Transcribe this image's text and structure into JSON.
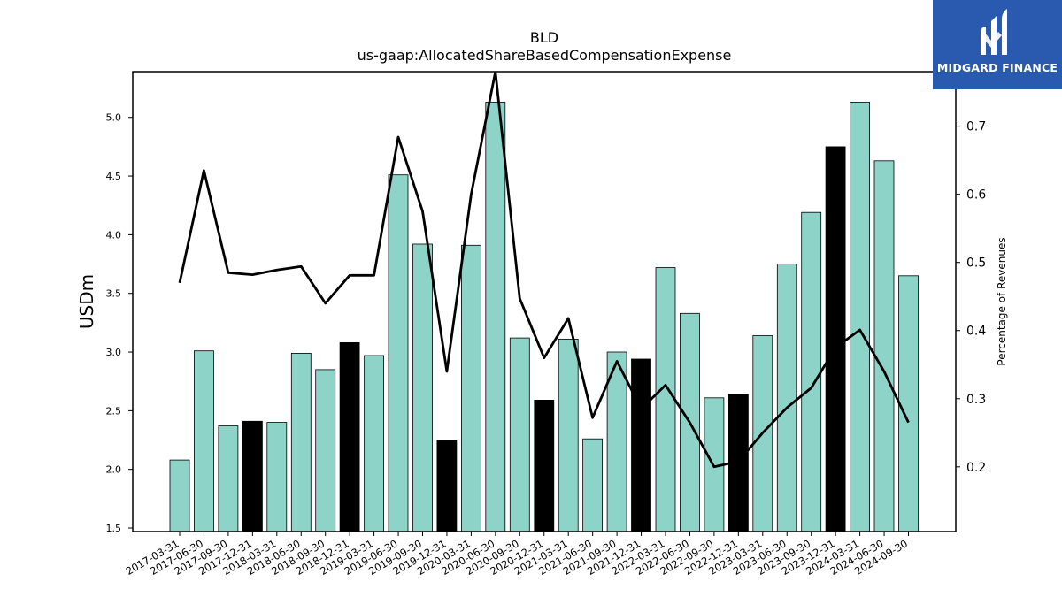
{
  "chart_data": {
    "type": "bar",
    "title": "BLD",
    "subtitle": "us-gaap:AllocatedShareBasedCompensationExpense",
    "ylabel": "USDm",
    "y2label": "Percentage of Revenues",
    "ylim": [
      1.47,
      5.39
    ],
    "y2lim": [
      0.105,
      0.78
    ],
    "yticks": [
      1.5,
      2.0,
      2.5,
      3.0,
      3.5,
      4.0,
      4.5,
      5.0
    ],
    "y2ticks": [
      0.2,
      0.3,
      0.4,
      0.5,
      0.6,
      0.7
    ],
    "categories": [
      "2017-03-31",
      "2017-06-30",
      "2017-09-30",
      "2017-12-31",
      "2018-03-31",
      "2018-06-30",
      "2018-09-30",
      "2018-12-31",
      "2019-03-31",
      "2019-06-30",
      "2019-09-30",
      "2019-12-31",
      "2020-03-31",
      "2020-06-30",
      "2020-09-30",
      "2020-12-31",
      "2021-03-31",
      "2021-06-30",
      "2021-09-30",
      "2021-12-31",
      "2022-03-31",
      "2022-06-30",
      "2022-09-30",
      "2022-12-31",
      "2023-03-31",
      "2023-06-30",
      "2023-09-30",
      "2023-12-31",
      "2024-03-31",
      "2024-06-30",
      "2024-09-30"
    ],
    "series": [
      {
        "type": "bar",
        "values": [
          2.08,
          3.01,
          2.37,
          2.41,
          2.4,
          2.99,
          2.85,
          3.08,
          2.97,
          4.51,
          3.92,
          2.25,
          3.91,
          5.13,
          3.12,
          2.59,
          3.11,
          2.26,
          3.0,
          2.94,
          3.72,
          3.33,
          2.61,
          2.64,
          3.14,
          3.75,
          4.19,
          4.75,
          5.13,
          4.63,
          3.65
        ],
        "highlight": [
          false,
          false,
          false,
          true,
          false,
          false,
          false,
          true,
          false,
          false,
          false,
          true,
          false,
          false,
          false,
          true,
          false,
          false,
          false,
          true,
          false,
          false,
          false,
          true,
          false,
          false,
          false,
          true,
          false,
          false,
          false
        ],
        "color": "#8dd3c7",
        "highlight_color": "#000000"
      },
      {
        "type": "line",
        "axis": "right",
        "values": [
          0.47,
          0.635,
          0.485,
          0.482,
          0.489,
          0.494,
          0.44,
          0.481,
          0.481,
          0.684,
          0.575,
          0.34,
          0.6,
          0.78,
          0.447,
          0.36,
          0.418,
          0.272,
          0.355,
          0.285,
          0.32,
          0.265,
          0.2,
          0.208,
          0.25,
          0.287,
          0.316,
          0.375,
          0.401,
          0.34,
          0.265
        ],
        "color": "#000000"
      }
    ]
  },
  "logo": {
    "text": "MIDGARD FINANCE",
    "background": "#2a5ab0"
  }
}
